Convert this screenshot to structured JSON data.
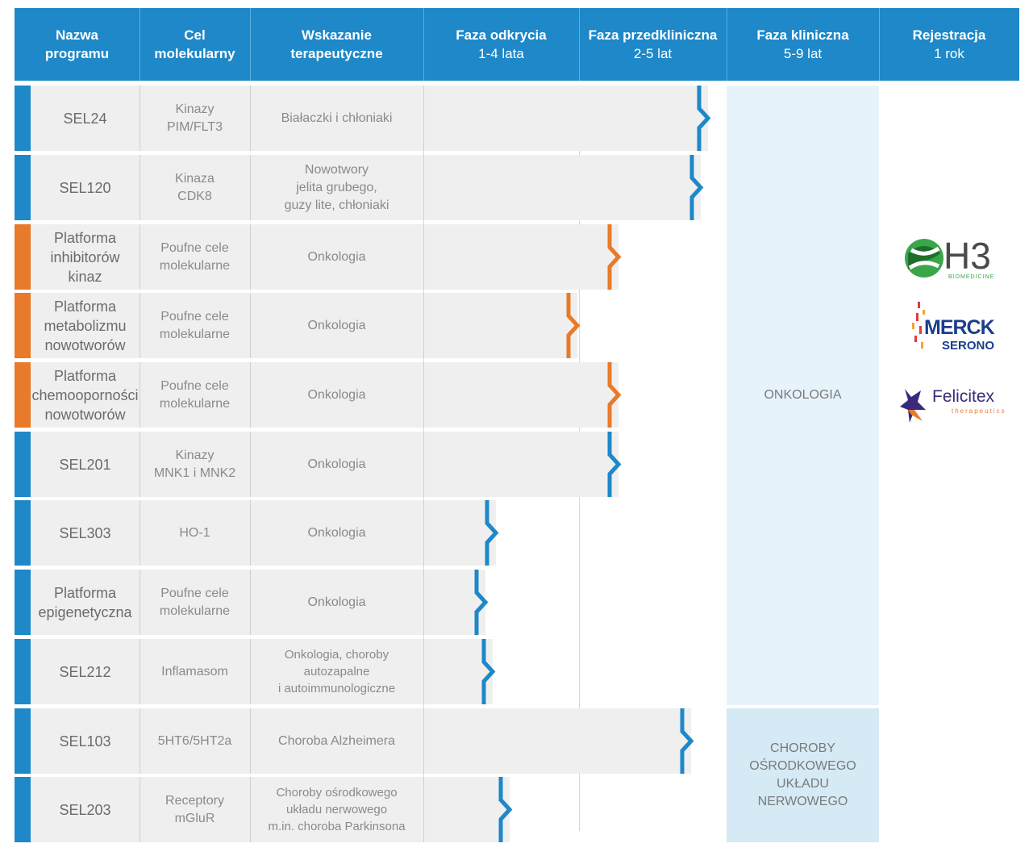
{
  "colors": {
    "header_bg": "#1e88c8",
    "stage_blue": "#1e88c8",
    "stage_orange": "#e87a2a",
    "row_bg": "#efefef",
    "oncology_area": "#e7f3fa",
    "cns_area": "#d5eaf5"
  },
  "headers": [
    {
      "title": "Nazwa\nprogramu",
      "subtitle": ""
    },
    {
      "title": "Cel\nmolekularny",
      "subtitle": ""
    },
    {
      "title": "Wskazanie\nterapeutyczne",
      "subtitle": ""
    },
    {
      "title": "Faza odkrycia",
      "subtitle": "1-4 lata"
    },
    {
      "title": "Faza przedkliniczna",
      "subtitle": "2-5 lat"
    },
    {
      "title": "Faza kliniczna",
      "subtitle": "5-9 lat"
    },
    {
      "title": "Rejestracja",
      "subtitle": "1 rok"
    }
  ],
  "rows": [
    {
      "name": "SEL24",
      "target": "Kinazy\nPIM/FLT3",
      "indication": "Białaczki i chłoniaki",
      "type": "blue",
      "stage": "Faza przedkliniczna"
    },
    {
      "name": "SEL120",
      "target": "Kinaza\nCDK8",
      "indication": "Nowotwory\njelita grubego,\nguzy lite, chłoniaki",
      "type": "blue",
      "stage": "Faza przedkliniczna"
    },
    {
      "name": "Platforma\ninhibitorów\nkinaz",
      "target": "Poufne cele\nmolekularne",
      "indication": "Onkologia",
      "type": "orange",
      "stage": "Faza przedkliniczna"
    },
    {
      "name": "Platforma\nmetabolizmu\nnowotworów",
      "target": "Poufne cele\nmolekularne",
      "indication": "Onkologia",
      "type": "orange",
      "stage": "Faza odkrycia"
    },
    {
      "name": "Platforma\nchemooporności\nnowotworów",
      "target": "Poufne cele\nmolekularne",
      "indication": "Onkologia",
      "type": "orange",
      "stage": "Faza przedkliniczna"
    },
    {
      "name": "SEL201",
      "target": "Kinazy\nMNK1 i MNK2",
      "indication": "Onkologia",
      "type": "blue",
      "stage": "Faza przedkliniczna"
    },
    {
      "name": "SEL303",
      "target": "HO-1",
      "indication": "Onkologia",
      "type": "blue",
      "stage": "Faza odkrycia"
    },
    {
      "name": "Platforma\nepigenetyczna",
      "target": "Poufne cele\nmolekularne",
      "indication": "Onkologia",
      "type": "blue",
      "stage": "Faza odkrycia"
    },
    {
      "name": "SEL212",
      "target": "Inflamasom",
      "indication": "Onkologia, choroby\nautozapalne\ni autoimmunologiczne",
      "type": "blue",
      "stage": "Faza odkrycia"
    },
    {
      "name": "SEL103",
      "target": "5HT6/5HT2a",
      "indication": "Choroba Alzheimera",
      "type": "blue",
      "stage": "Faza przedkliniczna"
    },
    {
      "name": "SEL203",
      "target": "Receptory\nmGluR",
      "indication": "Choroby ośrodkowego\nukładu nerwowego\nm.in. choroba Parkinsona",
      "type": "blue",
      "stage": "Faza odkrycia"
    }
  ],
  "therapeutic_areas": {
    "oncology": "ONKOLOGIA",
    "cns": "CHOROBY\nOŚRODKOWEGO\nUKŁADU\nNERWOWEGO"
  },
  "partners": [
    {
      "name": "H3",
      "subtitle": "BIOMEDICINE",
      "icon": "h3-helix-logo",
      "color": "#4a4a4a"
    },
    {
      "name": "MERCK",
      "subtitle": "SERONO",
      "icon": "merck-serono-logo",
      "color": "#1a3e8c"
    },
    {
      "name": "Felicitex",
      "subtitle": "therapeutics",
      "icon": "felicitex-star-logo",
      "color": "#3b2a7a"
    }
  ]
}
